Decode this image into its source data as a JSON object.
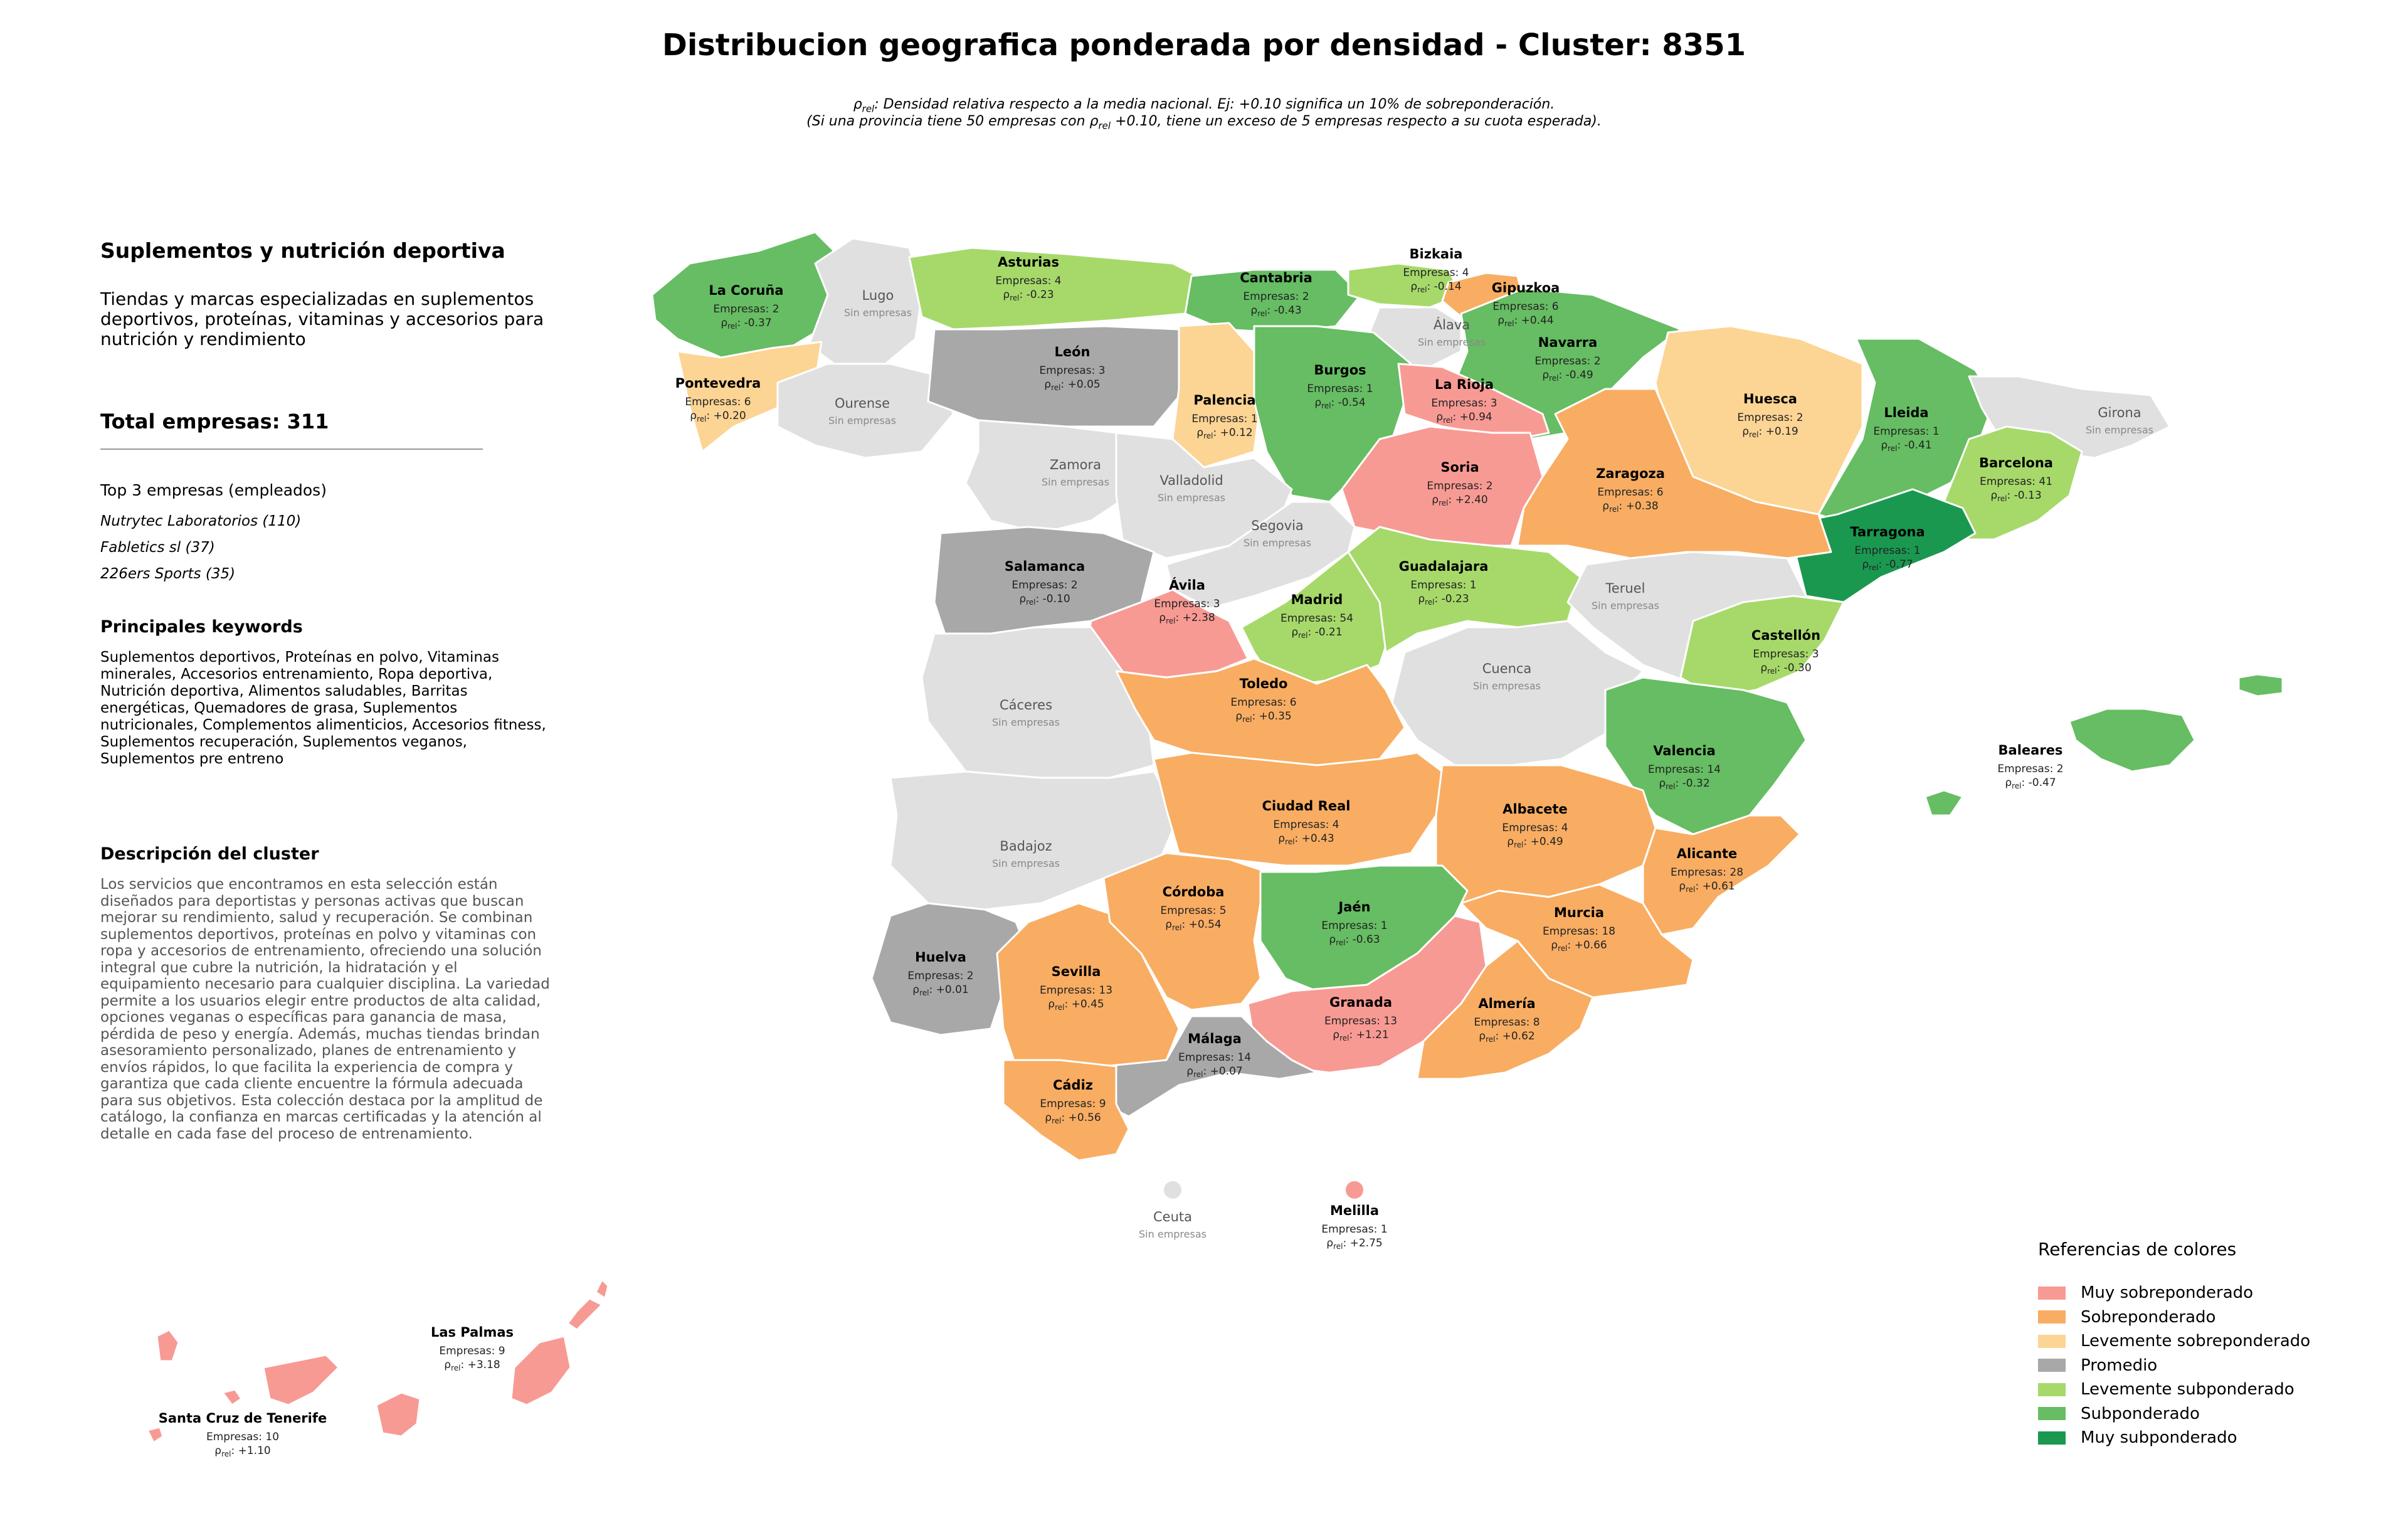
{
  "title": "Distribucion geografica ponderada por densidad - Cluster: 8351",
  "rho_sub": "rel",
  "note_line1": ": Densidad relativa respecto a la media nacional. Ej: +0.10 significa un 10% de sobreponderación.",
  "note_line2_a": "(Si una provincia tiene 50 empresas con ",
  "note_line2_b": " +0.10, tiene un exceso de 5 empresas respecto a su cuota esperada).",
  "panel": {
    "cluster_name": "Suplementos y nutrición deportiva",
    "tagline": "Tiendas y marcas especializadas en suplementos deportivos, proteínas, vitaminas y accesorios para nutrición y rendimiento",
    "total": "Total empresas: 311",
    "top_heading": "Top 3 empresas (empleados)",
    "top_companies": [
      "Nutrytec Laboratorios (110)",
      "Fabletics sl (37)",
      "226ers Sports (35)"
    ],
    "keywords_heading": "Principales keywords",
    "keywords": "Suplementos deportivos, Proteínas en polvo, Vitaminas minerales, Accesorios entrenamiento, Ropa deportiva, Nutrición deportiva, Alimentos saludables, Barritas energéticas, Quemadores de grasa, Suplementos nutricionales, Complementos alimenticios, Accesorios fitness, Suplementos recuperación, Suplementos veganos, Suplementos pre entreno",
    "description_heading": "Descripción del cluster",
    "description": "Los servicios que encontramos en esta selección están diseñados para deportistas y personas activas que buscan mejorar su rendimiento, salud y recuperación. Se combinan suplementos deportivos, proteínas en polvo y vitaminas con ropa y accesorios de entrenamiento, ofreciendo una solución integral que cubre la nutrición, la hidratación y el equipamiento necesario para cualquier disciplina. La variedad permite a los usuarios elegir entre productos de alta calidad, opciones veganas o específicas para ganancia de masa, pérdida de peso y energía. Además, muchas tiendas brindan asesoramiento personalizado, planes de entrenamiento y envíos rápidos, lo que facilita la experiencia de compra y garantiza que cada cliente encuentre la fórmula adecuada para sus objetivos. Esta colección destaca por la amplitud de catálogo, la confianza en marcas certificadas y la atención al detalle en cada fase del proceso de entrenamiento."
  },
  "colors": {
    "muy_sobre": "#f89a94",
    "sobre": "#f8ad63",
    "leve_sobre": "#fcd494",
    "promedio": "#a8a8a8",
    "leve_sub": "#a6d96a",
    "sub": "#66bd63",
    "muy_sub": "#1a9850",
    "sin": "#e0e0e0"
  },
  "legend": {
    "title": "Referencias de colores",
    "items": [
      {
        "label": "Muy sobreponderado",
        "cat": "muy_sobre"
      },
      {
        "label": "Sobreponderado",
        "cat": "sobre"
      },
      {
        "label": "Levemente sobreponderado",
        "cat": "leve_sobre"
      },
      {
        "label": "Promedio",
        "cat": "promedio"
      },
      {
        "label": "Levemente subponderado",
        "cat": "leve_sub"
      },
      {
        "label": "Subponderado",
        "cat": "sub"
      },
      {
        "label": "Muy subponderado",
        "cat": "muy_sub"
      }
    ]
  },
  "empresas_prefix": "Empresas: ",
  "sin_empresas": "Sin empresas",
  "provinces": [
    {
      "name": "La Coruña",
      "empresas": 2,
      "rho": "-0.37",
      "cat": "sub"
    },
    {
      "name": "Lugo",
      "empresas": null,
      "rho": null,
      "cat": "sin"
    },
    {
      "name": "Asturias",
      "empresas": 4,
      "rho": "-0.23",
      "cat": "leve_sub"
    },
    {
      "name": "Cantabria",
      "empresas": 2,
      "rho": "-0.43",
      "cat": "sub"
    },
    {
      "name": "Bizkaia",
      "empresas": 4,
      "rho": "-0.14",
      "cat": "leve_sub"
    },
    {
      "name": "Gipuzkoa",
      "empresas": 6,
      "rho": "+0.44",
      "cat": "sobre"
    },
    {
      "name": "Álava",
      "empresas": null,
      "rho": null,
      "cat": "sin"
    },
    {
      "name": "Navarra",
      "empresas": 2,
      "rho": "-0.49",
      "cat": "sub"
    },
    {
      "name": "Huesca",
      "empresas": 2,
      "rho": "+0.19",
      "cat": "leve_sobre"
    },
    {
      "name": "Lleida",
      "empresas": 1,
      "rho": "-0.41",
      "cat": "sub"
    },
    {
      "name": "Girona",
      "empresas": null,
      "rho": null,
      "cat": "sin"
    },
    {
      "name": "Barcelona",
      "empresas": 41,
      "rho": "-0.13",
      "cat": "leve_sub"
    },
    {
      "name": "Tarragona",
      "empresas": 1,
      "rho": "-0.77",
      "cat": "muy_sub"
    },
    {
      "name": "Pontevedra",
      "empresas": 6,
      "rho": "+0.20",
      "cat": "leve_sobre"
    },
    {
      "name": "Ourense",
      "empresas": null,
      "rho": null,
      "cat": "sin"
    },
    {
      "name": "León",
      "empresas": 3,
      "rho": "+0.05",
      "cat": "promedio"
    },
    {
      "name": "Palencia",
      "empresas": 1,
      "rho": "+0.12",
      "cat": "leve_sobre"
    },
    {
      "name": "Burgos",
      "empresas": 1,
      "rho": "-0.54",
      "cat": "sub"
    },
    {
      "name": "La Rioja",
      "empresas": 3,
      "rho": "+0.94",
      "cat": "muy_sobre"
    },
    {
      "name": "Soria",
      "empresas": 2,
      "rho": "+2.40",
      "cat": "muy_sobre"
    },
    {
      "name": "Zaragoza",
      "empresas": 6,
      "rho": "+0.38",
      "cat": "sobre"
    },
    {
      "name": "Zamora",
      "empresas": null,
      "rho": null,
      "cat": "sin"
    },
    {
      "name": "Valladolid",
      "empresas": null,
      "rho": null,
      "cat": "sin"
    },
    {
      "name": "Segovia",
      "empresas": null,
      "rho": null,
      "cat": "sin"
    },
    {
      "name": "Salamanca",
      "empresas": 2,
      "rho": "-0.10",
      "cat": "promedio"
    },
    {
      "name": "Ávila",
      "empresas": 3,
      "rho": "+2.38",
      "cat": "muy_sobre"
    },
    {
      "name": "Madrid",
      "empresas": 54,
      "rho": "-0.21",
      "cat": "leve_sub"
    },
    {
      "name": "Guadalajara",
      "empresas": 1,
      "rho": "-0.23",
      "cat": "leve_sub"
    },
    {
      "name": "Teruel",
      "empresas": null,
      "rho": null,
      "cat": "sin"
    },
    {
      "name": "Castellón",
      "empresas": 3,
      "rho": "-0.30",
      "cat": "leve_sub"
    },
    {
      "name": "Cáceres",
      "empresas": null,
      "rho": null,
      "cat": "sin"
    },
    {
      "name": "Toledo",
      "empresas": 6,
      "rho": "+0.35",
      "cat": "sobre"
    },
    {
      "name": "Cuenca",
      "empresas": null,
      "rho": null,
      "cat": "sin"
    },
    {
      "name": "Valencia",
      "empresas": 14,
      "rho": "-0.32",
      "cat": "sub"
    },
    {
      "name": "Baleares",
      "empresas": 2,
      "rho": "-0.47",
      "cat": "sub"
    },
    {
      "name": "Badajoz",
      "empresas": null,
      "rho": null,
      "cat": "sin"
    },
    {
      "name": "Ciudad Real",
      "empresas": 4,
      "rho": "+0.43",
      "cat": "sobre"
    },
    {
      "name": "Albacete",
      "empresas": 4,
      "rho": "+0.49",
      "cat": "sobre"
    },
    {
      "name": "Alicante",
      "empresas": 28,
      "rho": "+0.61",
      "cat": "sobre"
    },
    {
      "name": "Huelva",
      "empresas": 2,
      "rho": "+0.01",
      "cat": "promedio"
    },
    {
      "name": "Sevilla",
      "empresas": 13,
      "rho": "+0.45",
      "cat": "sobre"
    },
    {
      "name": "Córdoba",
      "empresas": 5,
      "rho": "+0.54",
      "cat": "sobre"
    },
    {
      "name": "Jaén",
      "empresas": 1,
      "rho": "-0.63",
      "cat": "sub"
    },
    {
      "name": "Granada",
      "empresas": 13,
      "rho": "+1.21",
      "cat": "muy_sobre"
    },
    {
      "name": "Murcia",
      "empresas": 18,
      "rho": "+0.66",
      "cat": "sobre"
    },
    {
      "name": "Almería",
      "empresas": 8,
      "rho": "+0.62",
      "cat": "sobre"
    },
    {
      "name": "Málaga",
      "empresas": 14,
      "rho": "+0.07",
      "cat": "promedio"
    },
    {
      "name": "Cádiz",
      "empresas": 9,
      "rho": "+0.56",
      "cat": "sobre"
    },
    {
      "name": "Ceuta",
      "empresas": null,
      "rho": null,
      "cat": "sin"
    },
    {
      "name": "Melilla",
      "empresas": 1,
      "rho": "+2.75",
      "cat": "muy_sobre"
    },
    {
      "name": "Las Palmas",
      "empresas": 9,
      "rho": "+3.18",
      "cat": "muy_sobre"
    },
    {
      "name": "Santa Cruz de Tenerife",
      "empresas": 10,
      "rho": "+1.10",
      "cat": "muy_sobre"
    }
  ]
}
